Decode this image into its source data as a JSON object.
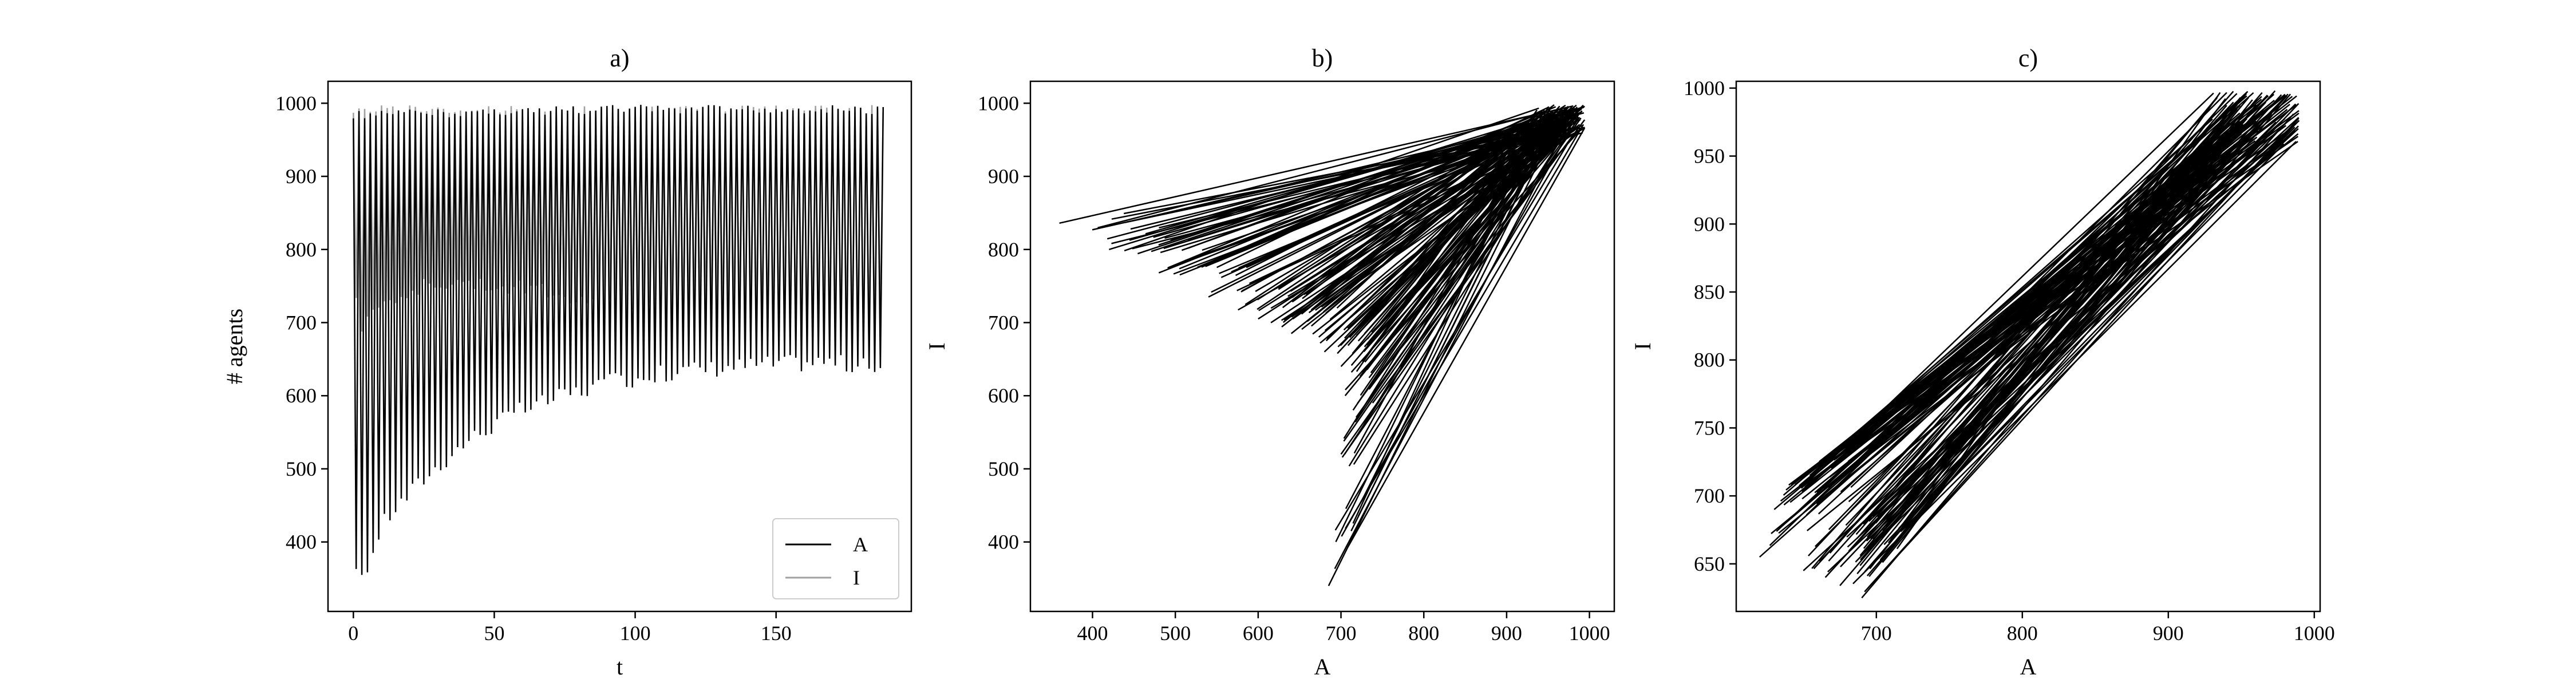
{
  "chart_data": [
    {
      "panel": "a",
      "type": "line",
      "title": "a)",
      "xlabel": "t",
      "ylabel": "# agents",
      "xlim": [
        -9,
        198
      ],
      "ylim": [
        305,
        1030
      ],
      "xticks": [
        0,
        50,
        100,
        150
      ],
      "yticks": [
        400,
        500,
        600,
        700,
        800,
        900,
        1000
      ],
      "legend": {
        "placement": "lower-right",
        "entries": [
          "A",
          "I"
        ]
      },
      "grid": false,
      "series": [
        {
          "name": "A",
          "color": "#000000",
          "x_start": 0,
          "x_end": 188,
          "peaks": [
            [
              0,
              990
            ],
            [
              94,
              998
            ],
            [
              188,
              997
            ]
          ],
          "troughs": [
            [
              2,
              340
            ],
            [
              6,
              360
            ],
            [
              10,
              410
            ],
            [
              14,
              430
            ],
            [
              18,
              445
            ],
            [
              22,
              462
            ],
            [
              26,
              478
            ],
            [
              30,
              490
            ],
            [
              34,
              505
            ],
            [
              38,
              518
            ],
            [
              42,
              530
            ],
            [
              50,
              548
            ],
            [
              60,
              568
            ],
            [
              70,
              582
            ],
            [
              80,
              594
            ],
            [
              90,
              604
            ],
            [
              100,
              612
            ],
            [
              110,
              618
            ],
            [
              120,
              623
            ],
            [
              130,
              626
            ],
            [
              140,
              629
            ],
            [
              150,
              631
            ],
            [
              160,
              633
            ],
            [
              170,
              634
            ],
            [
              188,
              622
            ]
          ]
        },
        {
          "name": "I",
          "color": "#a0a0a0",
          "x_start": 0,
          "x_end": 188,
          "peaks": [
            [
              0,
              998
            ],
            [
              94,
              996
            ],
            [
              188,
              998
            ]
          ],
          "troughs": [
            [
              0,
              770
            ],
            [
              2,
              680
            ],
            [
              6,
              700
            ],
            [
              12,
              720
            ],
            [
              20,
              735
            ],
            [
              40,
              745
            ],
            [
              60,
              735
            ],
            [
              80,
              720
            ],
            [
              100,
              705
            ],
            [
              120,
              695
            ],
            [
              140,
              685
            ],
            [
              160,
              675
            ],
            [
              188,
              670
            ]
          ]
        }
      ]
    },
    {
      "panel": "b",
      "type": "line",
      "title": "b)",
      "xlabel": "A",
      "ylabel": "I",
      "xlim": [
        325,
        1030
      ],
      "ylim": [
        305,
        1030
      ],
      "xticks": [
        400,
        500,
        600,
        700,
        800,
        900,
        1000
      ],
      "yticks": [
        400,
        500,
        600,
        700,
        800,
        900,
        1000
      ],
      "grid": false,
      "series": [
        {
          "name": "",
          "color": "#000000",
          "apex": [
            995,
            998
          ],
          "curve_outer_ends": [
            [
              360,
              836
            ],
            [
              420,
              800
            ],
            [
              480,
              768
            ],
            [
              540,
              735
            ],
            [
              600,
              705
            ],
            [
              640,
              685
            ],
            [
              680,
              660
            ],
            [
              700,
              640
            ],
            [
              705,
              600
            ],
            [
              700,
              520
            ],
            [
              685,
              340
            ]
          ]
        }
      ]
    },
    {
      "panel": "c",
      "type": "line",
      "title": "c)",
      "xlabel": "A",
      "ylabel": "I",
      "xlim": [
        604,
        1004
      ],
      "ylim": [
        615,
        1005
      ],
      "xticks": [
        700,
        800,
        900,
        1000
      ],
      "yticks": [
        650,
        700,
        750,
        800,
        850,
        900,
        950,
        1000
      ],
      "grid": false,
      "series": [
        {
          "name": "",
          "color": "#000000",
          "apex": [
            990,
            998
          ],
          "curve_outer_ends": [
            [
              620,
              655
            ],
            [
              630,
              690
            ],
            [
              640,
              708
            ],
            [
              650,
              645
            ],
            [
              665,
              640
            ],
            [
              675,
              634
            ],
            [
              690,
              625
            ]
          ]
        }
      ]
    }
  ]
}
